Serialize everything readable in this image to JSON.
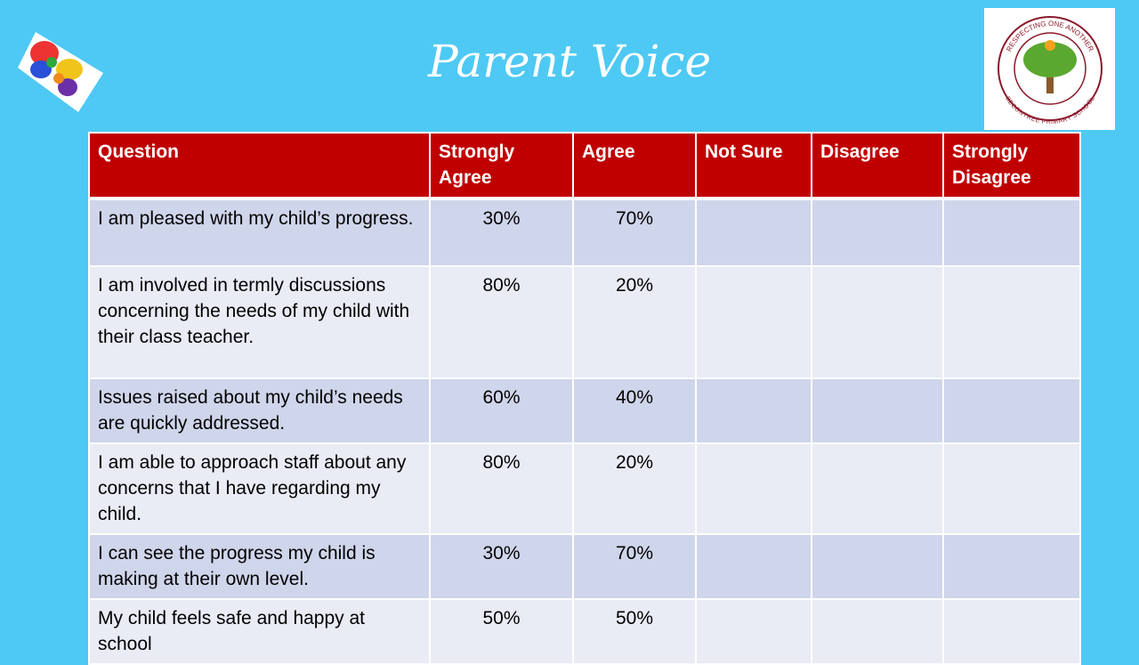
{
  "header": {
    "title": "Parent Voice",
    "logo_top": "RESPECTING ONE ANOTHER",
    "logo_bottom": "BECONTREE PRIMARY SCHOOL"
  },
  "table": {
    "columns": [
      "Question",
      "Strongly Agree",
      "Agree",
      "Not Sure",
      "Disagree",
      "Strongly Disagree"
    ],
    "rows": [
      [
        "I am pleased with my child’s progress.",
        "30%",
        "70%"
      ],
      [
        "I am involved in termly discussions concerning the needs of my child with their class teacher.",
        "80%",
        "20%"
      ],
      [
        "Issues raised about my child’s needs are quickly addressed.",
        "60%",
        "40%"
      ],
      [
        "I am able to approach staff about any concerns that I have regarding my child.",
        "80%",
        "20%"
      ],
      [
        "I can see the progress my child is making at their own level.",
        "30%",
        "70%"
      ],
      [
        "My child feels safe and happy at school",
        "50%",
        "50%"
      ]
    ]
  }
}
